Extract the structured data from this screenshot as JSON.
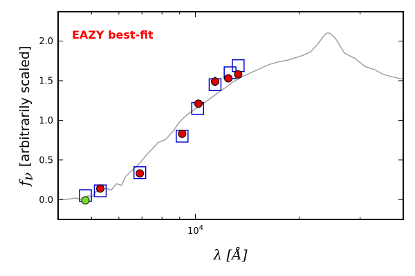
{
  "chart_data": {
    "type": "scatter",
    "title": "EAZY best-fit",
    "title_color": "#ff0000",
    "xlabel": "λ [Å]",
    "ylabel_symbol": "f",
    "ylabel_subscript": "ν",
    "ylabel_text": "[arbitrarily scaled]",
    "x_scale": "log",
    "xlim": [
      4000,
      40000
    ],
    "ylim": [
      -0.25,
      2.37
    ],
    "yticks": [
      0.0,
      0.5,
      1.0,
      1.5,
      2.0
    ],
    "ytick_labels": [
      "0.0",
      "0.5",
      "1.0",
      "1.5",
      "2.0"
    ],
    "xtick_major": [
      10000
    ],
    "xtick_major_label_base": "10",
    "xtick_major_label_exp": "4",
    "xtick_minor": [
      5000,
      6000,
      7000,
      8000,
      9000,
      20000,
      30000
    ],
    "series": [
      {
        "name": "template",
        "kind": "line",
        "color": "#a0a0a0",
        "x": [
          4000,
          4200,
          4500,
          4700,
          4900,
          5000,
          5150,
          5300,
          5500,
          5700,
          5900,
          6100,
          6300,
          6600,
          6900,
          7200,
          7500,
          7800,
          8200,
          8600,
          9000,
          9400,
          9800,
          10200,
          10600,
          11000,
          11400,
          11800,
          12300,
          12800,
          13300,
          13800,
          14300,
          15000,
          15700,
          16500,
          17500,
          18500,
          19500,
          20500,
          21500,
          22500,
          23500,
          24000,
          24500,
          25500,
          27000,
          29000,
          31000,
          33000,
          35000,
          37000,
          40000
        ],
        "y": [
          0.0,
          0.0,
          0.02,
          0.0,
          0.05,
          0.03,
          0.1,
          0.12,
          0.14,
          0.12,
          0.2,
          0.18,
          0.3,
          0.38,
          0.46,
          0.56,
          0.64,
          0.72,
          0.76,
          0.86,
          0.98,
          1.06,
          1.12,
          1.17,
          1.22,
          1.27,
          1.32,
          1.37,
          1.42,
          1.48,
          1.52,
          1.56,
          1.59,
          1.63,
          1.67,
          1.71,
          1.74,
          1.76,
          1.79,
          1.82,
          1.86,
          1.95,
          2.06,
          2.1,
          2.1,
          2.03,
          1.85,
          1.78,
          1.68,
          1.64,
          1.58,
          1.55,
          1.52
        ]
      },
      {
        "name": "model-photometry",
        "kind": "open-square",
        "color": "#0000cc",
        "x": [
          4800,
          5300,
          6900,
          9150,
          10150,
          11400,
          12600,
          13300
        ],
        "y": [
          0.05,
          0.11,
          0.34,
          0.8,
          1.15,
          1.45,
          1.6,
          1.69
        ]
      },
      {
        "name": "observed-photometry",
        "kind": "filled-circle",
        "color": "#dd0000",
        "x": [
          5300,
          6900,
          9150,
          10200,
          11400,
          12450,
          13300
        ],
        "y": [
          0.14,
          0.33,
          0.83,
          1.21,
          1.49,
          1.53,
          1.58
        ],
        "yerr": [
          0.02,
          0.02,
          0.02,
          0.02,
          0.06,
          0.03,
          0.03
        ]
      },
      {
        "name": "observed-photometry-outlier",
        "kind": "filled-circle",
        "color": "#77dd22",
        "x": [
          4800
        ],
        "y": [
          -0.01
        ]
      }
    ]
  }
}
